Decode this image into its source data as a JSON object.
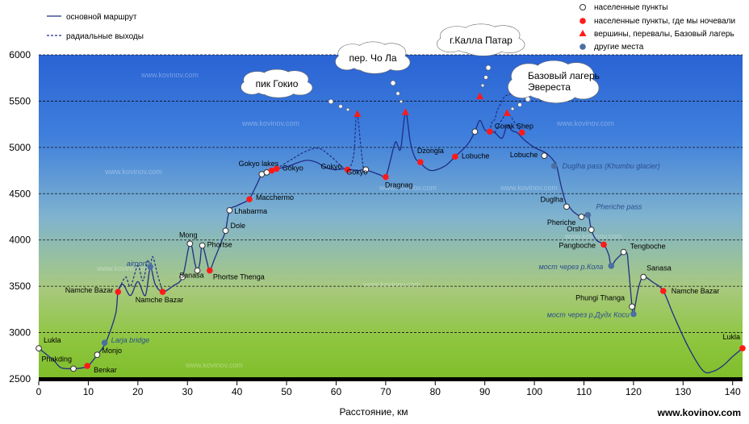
{
  "chart_data": {
    "type": "line",
    "xlabel": "Расстояние, км",
    "xlim": [
      0,
      142
    ],
    "ylim": [
      2500,
      6000
    ],
    "x_ticks": [
      "0",
      "10",
      "20",
      "30",
      "40",
      "50",
      "60",
      "70",
      "80",
      "90",
      "100",
      "110",
      "120",
      "130",
      "140"
    ],
    "y_ticks": [
      "2500",
      "3000",
      "3500",
      "4000",
      "4500",
      "5000",
      "5500",
      "6000"
    ],
    "grid": "horizontal dashed",
    "legend_left": [
      {
        "label": "основной маршрут",
        "style": "solid"
      },
      {
        "label": "радиальные выходы",
        "style": "dashed"
      }
    ],
    "legend_right": [
      {
        "label": "населенные пункты",
        "marker": "open-circle"
      },
      {
        "label": "населенные пункты, где мы ночевали",
        "marker": "red-circle"
      },
      {
        "label": "вершины, перевалы, Базовый лагерь",
        "marker": "red-triangle"
      },
      {
        "label": "другие места",
        "marker": "blue-circle"
      }
    ],
    "main_route": [
      [
        0,
        2830
      ],
      [
        3,
        2700
      ],
      [
        4.5,
        2620
      ],
      [
        7,
        2610
      ],
      [
        9,
        2620
      ],
      [
        10,
        2640
      ],
      [
        11.8,
        2760
      ],
      [
        13.5,
        2890
      ],
      [
        15.5,
        3200
      ],
      [
        16,
        3440
      ],
      [
        17,
        3520
      ],
      [
        18.5,
        3400
      ],
      [
        20,
        3550
      ],
      [
        21.5,
        3400
      ],
      [
        22.5,
        3700
      ],
      [
        23.5,
        3520
      ],
      [
        25,
        3440
      ],
      [
        27,
        3500
      ],
      [
        29,
        3600
      ],
      [
        30.5,
        3960
      ],
      [
        31.5,
        3750
      ],
      [
        32,
        3670
      ],
      [
        32.5,
        3750
      ],
      [
        33,
        3940
      ],
      [
        34,
        3750
      ],
      [
        34.5,
        3670
      ],
      [
        35.5,
        3800
      ],
      [
        37,
        4000
      ],
      [
        37.7,
        4100
      ],
      [
        38.5,
        4320
      ],
      [
        40,
        4370
      ],
      [
        42,
        4420
      ],
      [
        42.5,
        4440
      ],
      [
        44,
        4600
      ],
      [
        45,
        4710
      ],
      [
        46,
        4730
      ],
      [
        47,
        4750
      ],
      [
        48,
        4770
      ],
      [
        50,
        4790
      ],
      [
        52,
        4830
      ],
      [
        54,
        4860
      ],
      [
        56,
        4840
      ],
      [
        58,
        4780
      ],
      [
        60,
        4760
      ],
      [
        62,
        4770
      ],
      [
        63,
        4760
      ],
      [
        64.5,
        4750
      ],
      [
        65.5,
        4760
      ],
      [
        67,
        4740
      ],
      [
        69,
        4700
      ],
      [
        70,
        4680
      ],
      [
        71,
        4870
      ],
      [
        72,
        5060
      ],
      [
        73,
        4980
      ],
      [
        74,
        5380
      ],
      [
        75,
        5050
      ],
      [
        76,
        4880
      ],
      [
        77,
        4840
      ],
      [
        78,
        4780
      ],
      [
        79.5,
        4750
      ],
      [
        82,
        4800
      ],
      [
        84,
        4900
      ],
      [
        86,
        5000
      ],
      [
        87,
        5070
      ],
      [
        88,
        5170
      ],
      [
        89,
        5290
      ],
      [
        90,
        5190
      ],
      [
        91,
        5170
      ],
      [
        92,
        5160
      ],
      [
        93.5,
        5100
      ],
      [
        94.5,
        5240
      ],
      [
        95.5,
        5180
      ],
      [
        96.5,
        5160
      ],
      [
        98,
        5080
      ],
      [
        100,
        5000
      ],
      [
        102,
        4950
      ],
      [
        103,
        4910
      ],
      [
        104,
        4850
      ],
      [
        104.5,
        4800
      ],
      [
        105.5,
        4560
      ],
      [
        106.5,
        4380
      ],
      [
        107,
        4360
      ],
      [
        108,
        4300
      ],
      [
        109.5,
        4250
      ],
      [
        110.5,
        4280
      ],
      [
        111,
        4250
      ],
      [
        111.5,
        4110
      ],
      [
        112.5,
        4000
      ],
      [
        114,
        3950
      ],
      [
        115,
        3840
      ],
      [
        115.5,
        3720
      ],
      [
        116.5,
        3790
      ],
      [
        118.5,
        3870
      ],
      [
        119,
        3700
      ],
      [
        119.7,
        3280
      ],
      [
        120,
        3200
      ],
      [
        121,
        3480
      ],
      [
        122,
        3600
      ],
      [
        124,
        3540
      ],
      [
        126,
        3450
      ],
      [
        128,
        3200
      ],
      [
        131,
        2850
      ],
      [
        134,
        2590
      ],
      [
        136,
        2580
      ],
      [
        138,
        2640
      ],
      [
        140,
        2740
      ],
      [
        142,
        2830
      ]
    ],
    "radial_routes": [
      {
        "name": "airport",
        "points": [
          [
            16,
            3440
          ],
          [
            17.5,
            3600
          ],
          [
            18.5,
            3500
          ],
          [
            20,
            3720
          ],
          [
            21,
            3560
          ],
          [
            22,
            3780
          ],
          [
            22.5,
            3710
          ],
          [
            23,
            3820
          ],
          [
            24,
            3620
          ],
          [
            25,
            3440
          ]
        ]
      },
      {
        "name": "gokyo-ri",
        "points": [
          [
            48,
            4770
          ],
          [
            51,
            4870
          ],
          [
            54,
            4960
          ],
          [
            56.5,
            4990
          ],
          [
            59,
            4900
          ],
          [
            61,
            4800
          ],
          [
            62.3,
            4760
          ],
          [
            63.5,
            4900
          ],
          [
            64,
            5300
          ],
          [
            64.3,
            5360
          ],
          [
            65,
            5000
          ],
          [
            65.5,
            4770
          ]
        ]
      },
      {
        "name": "kala-patthar",
        "points": [
          [
            91,
            5170
          ],
          [
            91.5,
            5280
          ],
          [
            92,
            5300
          ],
          [
            92.5,
            5400
          ],
          [
            93,
            5450
          ],
          [
            94,
            5550
          ],
          [
            95,
            5570
          ],
          [
            96,
            5620
          ],
          [
            96.5,
            5550
          ]
        ]
      },
      {
        "name": "everest-base-camp",
        "points": [
          [
            92,
            5160
          ],
          [
            93,
            5260
          ],
          [
            94,
            5340
          ],
          [
            95,
            5350
          ],
          [
            96,
            5270
          ],
          [
            97,
            5200
          ],
          [
            97.5,
            5160
          ]
        ]
      }
    ],
    "points": [
      {
        "x": 0,
        "y": 2830,
        "type": "open",
        "label": "Lukla"
      },
      {
        "x": 7,
        "y": 2610,
        "type": "open",
        "label": "Phakding"
      },
      {
        "x": 9.8,
        "y": 2640,
        "type": "red",
        "label": "Benkar"
      },
      {
        "x": 11.8,
        "y": 2760,
        "type": "open",
        "label": "Monjo"
      },
      {
        "x": 13.3,
        "y": 2890,
        "type": "blue",
        "label": "Larja bridge"
      },
      {
        "x": 16,
        "y": 3440,
        "type": "red",
        "label": "Namche Bazar"
      },
      {
        "x": 22.5,
        "y": 3710,
        "type": "blue",
        "label": "airport"
      },
      {
        "x": 25,
        "y": 3440,
        "type": "red",
        "label": "Namche Bazar"
      },
      {
        "x": 29,
        "y": 3600,
        "type": "open",
        "label": "Sanasa"
      },
      {
        "x": 30.5,
        "y": 3960,
        "type": "open",
        "label": "Mong"
      },
      {
        "x": 32,
        "y": 3670,
        "type": "open",
        "label": ""
      },
      {
        "x": 33,
        "y": 3940,
        "type": "open",
        "label": "Phortse"
      },
      {
        "x": 34.5,
        "y": 3670,
        "type": "red",
        "label": "Phortse Thenga"
      },
      {
        "x": 37.7,
        "y": 4100,
        "type": "open",
        "label": "Dole"
      },
      {
        "x": 38.5,
        "y": 4320,
        "type": "open",
        "label": "Lhabarma"
      },
      {
        "x": 42.5,
        "y": 4440,
        "type": "red",
        "label": "Macchermo"
      },
      {
        "x": 45,
        "y": 4710,
        "type": "open",
        "label": "Gokyo lakes"
      },
      {
        "x": 46,
        "y": 4730,
        "type": "open",
        "label": ""
      },
      {
        "x": 47,
        "y": 4750,
        "type": "red",
        "label": ""
      },
      {
        "x": 48,
        "y": 4770,
        "type": "red",
        "label": "Gokyo"
      },
      {
        "x": 62.3,
        "y": 4760,
        "type": "red",
        "label": "Gokyo"
      },
      {
        "x": 66,
        "y": 4760,
        "type": "open",
        "label": "Gokyo"
      },
      {
        "x": 70,
        "y": 4680,
        "type": "red",
        "label": "Dragnag"
      },
      {
        "x": 77,
        "y": 4840,
        "type": "red",
        "label": "Dzongla"
      },
      {
        "x": 84,
        "y": 4900,
        "type": "red",
        "label": "Lobuche"
      },
      {
        "x": 88,
        "y": 5170,
        "type": "open",
        "label": ""
      },
      {
        "x": 91,
        "y": 5170,
        "type": "red",
        "label": "Gorak Shep"
      },
      {
        "x": 97.5,
        "y": 5160,
        "type": "red",
        "label": ""
      },
      {
        "x": 102,
        "y": 4910,
        "type": "open",
        "label": "Lobuche"
      },
      {
        "x": 104,
        "y": 4800,
        "type": "blue",
        "label": "Duglha pass (Khumbu glacier)"
      },
      {
        "x": 106.5,
        "y": 4360,
        "type": "open",
        "label": "Duglha"
      },
      {
        "x": 109.5,
        "y": 4250,
        "type": "open",
        "label": "Pheriche"
      },
      {
        "x": 110.8,
        "y": 4270,
        "type": "blue",
        "label": "Pheriche pass"
      },
      {
        "x": 111.5,
        "y": 4110,
        "type": "open",
        "label": "Orsho"
      },
      {
        "x": 114,
        "y": 3950,
        "type": "red",
        "label": "Pangboche"
      },
      {
        "x": 115.5,
        "y": 3720,
        "type": "blue",
        "label": "мост через р.Кола"
      },
      {
        "x": 118,
        "y": 3870,
        "type": "open",
        "label": "Tengboche"
      },
      {
        "x": 119.7,
        "y": 3280,
        "type": "open",
        "label": "Phungi Thanga"
      },
      {
        "x": 120,
        "y": 3200,
        "type": "blue",
        "label": "мост через р.Дудх Коси"
      },
      {
        "x": 122,
        "y": 3600,
        "type": "open",
        "label": "Sanasa"
      },
      {
        "x": 126,
        "y": 3450,
        "type": "red",
        "label": "Namche Bazar"
      },
      {
        "x": 142,
        "y": 2830,
        "type": "red",
        "label": "Lukla"
      }
    ],
    "peaks": [
      {
        "x": 64.3,
        "y": 5360,
        "label": "пик Гокио"
      },
      {
        "x": 74,
        "y": 5380,
        "label": "пер. Чо Ла"
      },
      {
        "x": 89,
        "y": 5550,
        "label": "г.Калла Патар"
      },
      {
        "x": 94.5,
        "y": 5370,
        "label": "Базовый лагерь Эвереста"
      }
    ],
    "bubbles": [
      {
        "text": "пик Гокио"
      },
      {
        "text": "пер. Чо Ла"
      },
      {
        "text": "г.Калла Патар"
      },
      {
        "lines": [
          "Базовый лагерь",
          "Эвереста"
        ]
      }
    ],
    "watermark": "www.kovinov.com",
    "site_label": "www.kovinov.com"
  },
  "colors": {
    "line": "#1f2d86",
    "red": "#ff1a1a",
    "blue": "#4a6fa0",
    "open_fill": "#ffffff",
    "sky_top": "#2a63d4",
    "sky_mid": "#6aa6d8",
    "ground": "#8ec63f"
  }
}
